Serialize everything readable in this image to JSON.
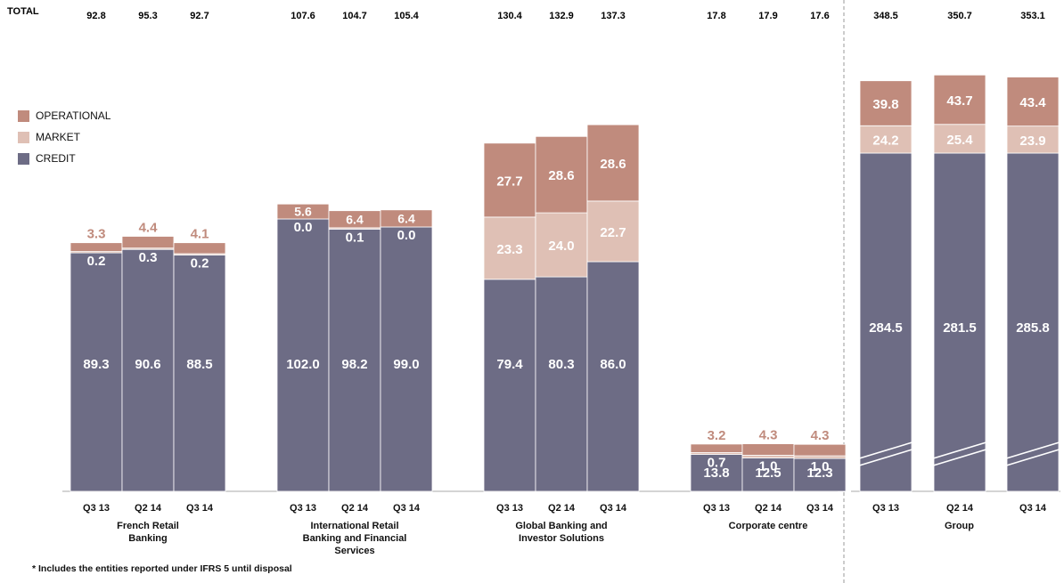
{
  "total_label": "TOTAL",
  "footnote": "* Includes the entities reported under IFRS 5 until disposal",
  "colors": {
    "credit": "#6d6c85",
    "market": "#dfc0b5",
    "operational": "#c08b7d",
    "operational_label": "#c08b7d",
    "divider": "#999999"
  },
  "legend": [
    {
      "key": "operational",
      "label": "OPERATIONAL"
    },
    {
      "key": "market",
      "label": "MARKET"
    },
    {
      "key": "credit",
      "label": "CREDIT"
    }
  ],
  "chart_data": {
    "type": "bar",
    "stacked": true,
    "series_order": [
      "credit",
      "market",
      "operational"
    ],
    "axis_break": "Group bars",
    "groups": [
      {
        "name": "French Retail\nBanking",
        "bars": [
          {
            "period": "Q3 13",
            "total": "92.8",
            "credit": 89.3,
            "market": 0.2,
            "operational": 3.3
          },
          {
            "period": "Q2 14",
            "total": "95.3",
            "credit": 90.6,
            "market": 0.3,
            "operational": 4.4
          },
          {
            "period": "Q3 14",
            "total": "92.7",
            "credit": 88.5,
            "market": 0.2,
            "operational": 4.1
          }
        ]
      },
      {
        "name": "International Retail\nBanking and Financial\nServices",
        "bars": [
          {
            "period": "Q3 13",
            "total": "107.6",
            "credit": 102.0,
            "market": 0.0,
            "operational": 5.6
          },
          {
            "period": "Q2 14",
            "total": "104.7",
            "credit": 98.2,
            "market": 0.1,
            "operational": 6.4
          },
          {
            "period": "Q3 14",
            "total": "105.4",
            "credit": 99.0,
            "market": 0.0,
            "operational": 6.4
          }
        ]
      },
      {
        "name": "Global Banking and\nInvestor Solutions",
        "bars": [
          {
            "period": "Q3 13",
            "total": "130.4",
            "credit": 79.4,
            "market": 23.3,
            "operational": 27.7
          },
          {
            "period": "Q2 14",
            "total": "132.9",
            "credit": 80.3,
            "market": 24.0,
            "operational": 28.6
          },
          {
            "period": "Q3 14",
            "total": "137.3",
            "credit": 86.0,
            "market": 22.7,
            "operational": 28.6
          }
        ]
      },
      {
        "name": "Corporate centre",
        "bars": [
          {
            "period": "Q3 13",
            "total": "17.8",
            "credit": 13.8,
            "market": 0.7,
            "operational": 3.2
          },
          {
            "period": "Q2 14",
            "total": "17.9",
            "credit": 12.5,
            "market": 1.0,
            "operational": 4.3
          },
          {
            "period": "Q3 14",
            "total": "17.6",
            "credit": 12.3,
            "market": 1.0,
            "operational": 4.3
          }
        ]
      },
      {
        "name": "Group",
        "bars": [
          {
            "period": "Q3 13",
            "total": "348.5",
            "credit": 284.5,
            "market": 24.2,
            "operational": 39.8
          },
          {
            "period": "Q2 14",
            "total": "350.7",
            "credit": 281.5,
            "market": 25.4,
            "operational": 43.7
          },
          {
            "period": "Q3 14",
            "total": "353.1",
            "credit": 285.8,
            "market": 23.9,
            "operational": 43.4
          }
        ]
      }
    ]
  }
}
